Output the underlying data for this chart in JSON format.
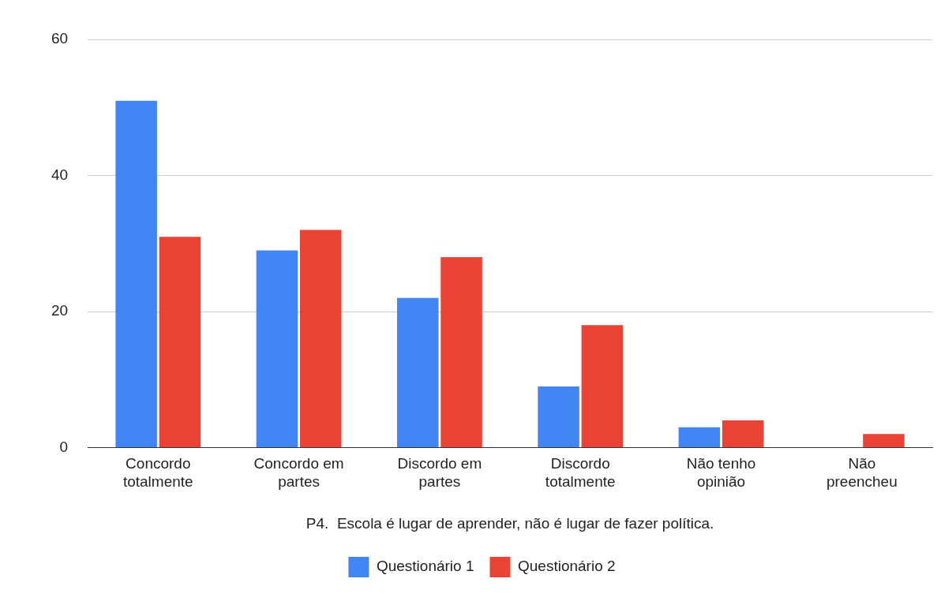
{
  "chart_data": {
    "type": "bar",
    "xlabel": "P4.  Escola é lugar de aprender, não é lugar de fazer política.",
    "categories": [
      "Concordo totalmente",
      "Concordo em partes",
      "Discordo em partes",
      "Discordo totalmente",
      "Não tenho opinião",
      "Não preencheu"
    ],
    "series": [
      {
        "name": "Questionário 1",
        "color": "#4285f4",
        "values": [
          51,
          29,
          22,
          9,
          3,
          0
        ]
      },
      {
        "name": "Questionário 2",
        "color": "#ea4335",
        "values": [
          31,
          32,
          28,
          18,
          4,
          2
        ]
      }
    ],
    "ylim": [
      0,
      60
    ],
    "yticks": [
      0,
      20,
      40,
      60
    ],
    "grid": "y",
    "legend": "bottom"
  }
}
